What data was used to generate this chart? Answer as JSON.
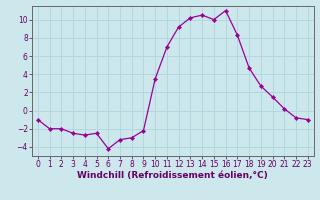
{
  "x": [
    0,
    1,
    2,
    3,
    4,
    5,
    6,
    7,
    8,
    9,
    10,
    11,
    12,
    13,
    14,
    15,
    16,
    17,
    18,
    19,
    20,
    21,
    22,
    23
  ],
  "y": [
    -1.0,
    -2.0,
    -2.0,
    -2.5,
    -2.7,
    -2.5,
    -4.2,
    -3.2,
    -3.0,
    -2.2,
    3.5,
    7.0,
    9.2,
    10.2,
    10.5,
    10.0,
    11.0,
    8.3,
    4.7,
    2.7,
    1.5,
    0.2,
    -0.8,
    -1.0
  ],
  "line_color": "#990099",
  "marker": "D",
  "marker_size": 2.2,
  "background_color": "#cce8ec",
  "grid_color": "#b0d8de",
  "xlabel": "Windchill (Refroidissement éolien,°C)",
  "ylim": [
    -5,
    11.5
  ],
  "xlim": [
    -0.5,
    23.5
  ],
  "yticks": [
    -4,
    -2,
    0,
    2,
    4,
    6,
    8,
    10
  ],
  "xticks": [
    0,
    1,
    2,
    3,
    4,
    5,
    6,
    7,
    8,
    9,
    10,
    11,
    12,
    13,
    14,
    15,
    16,
    17,
    18,
    19,
    20,
    21,
    22,
    23
  ],
  "tick_color": "#660066",
  "axis_color": "#666666",
  "label_fontsize": 6.5,
  "tick_fontsize": 5.5
}
